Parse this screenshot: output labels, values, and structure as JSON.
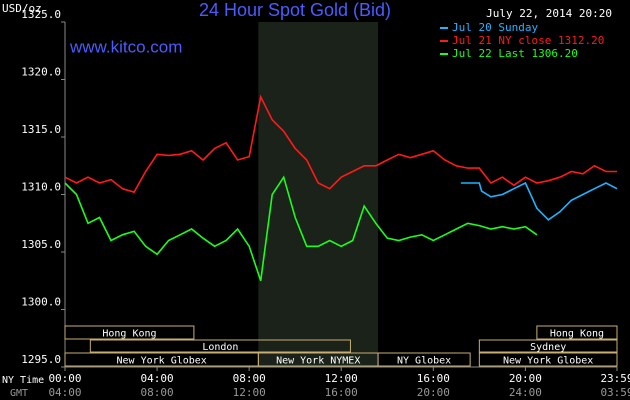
{
  "chart_data": {
    "type": "line",
    "title": "24 Hour Spot Gold (Bid)",
    "timestamp": "July 22, 2014 20:20",
    "site": "www.kitco.com",
    "y_label": "USD/oz",
    "x_label": "NY Time",
    "x2_label": "GMT",
    "xlim": [
      0,
      23.98
    ],
    "ylim": [
      1295,
      1325
    ],
    "yticks": [
      {
        "value": 1295,
        "label": "1295.0"
      },
      {
        "value": 1300,
        "label": "1300.0"
      },
      {
        "value": 1305,
        "label": "1305.0"
      },
      {
        "value": 1310,
        "label": "1310.0"
      },
      {
        "value": 1315,
        "label": "1315.0"
      },
      {
        "value": 1320,
        "label": "1320.0"
      },
      {
        "value": 1325,
        "label": "1325.0"
      }
    ],
    "xticks": [
      {
        "value": 0,
        "label": "00:00"
      },
      {
        "value": 4,
        "label": "04:00"
      },
      {
        "value": 8,
        "label": "08:00"
      },
      {
        "value": 12,
        "label": "12:00"
      },
      {
        "value": 16,
        "label": "16:00"
      },
      {
        "value": 20,
        "label": "20:00"
      },
      {
        "value": 23.98,
        "label": "23:59"
      }
    ],
    "x2ticks": [
      {
        "value": 0,
        "label": "04:00"
      },
      {
        "value": 4,
        "label": "08:00"
      },
      {
        "value": 8,
        "label": "12:00"
      },
      {
        "value": 12,
        "label": "16:00"
      },
      {
        "value": 16,
        "label": "20:00"
      },
      {
        "value": 20,
        "label": "24:00"
      },
      {
        "value": 23.98,
        "label": "03:59"
      }
    ],
    "shaded_range": [
      8.4,
      13.6
    ],
    "sessions": [
      {
        "label": "Hong Kong",
        "start": 0,
        "end": 5.6,
        "row": 0
      },
      {
        "label": "Hong Kong",
        "start": 20.5,
        "end": 23.98,
        "row": 0
      },
      {
        "label": "London",
        "start": 1.1,
        "end": 12.4,
        "row": 1
      },
      {
        "label": "Sydney",
        "start": 18,
        "end": 23.98,
        "row": 1
      },
      {
        "label": "New York Globex",
        "start": 0,
        "end": 8.4,
        "row": 2
      },
      {
        "label": "New York NYMEX",
        "start": 8.4,
        "end": 13.6,
        "row": 2
      },
      {
        "label": "NY Globex",
        "start": 13.6,
        "end": 17.6,
        "row": 2
      },
      {
        "label": "New York Globex",
        "start": 18,
        "end": 23.98,
        "row": 2
      }
    ],
    "series": [
      {
        "name": "Jul 20 Sunday",
        "color": "#1eb4ff",
        "x": [
          17.2,
          18,
          18.1,
          18.5,
          19,
          19.5,
          20,
          20.5,
          21,
          21.5,
          22,
          22.5,
          23,
          23.5,
          23.98
        ],
        "values": [
          1311,
          1311,
          1310.3,
          1309.8,
          1310,
          1310.5,
          1311,
          1308.8,
          1307.8,
          1308.5,
          1309.5,
          1310,
          1310.5,
          1311,
          1310.5
        ]
      },
      {
        "name": "Jul 21 NY close 1312.20",
        "color": "#ff1a1a",
        "x": [
          0,
          0.5,
          1,
          1.5,
          2,
          2.5,
          3,
          3.5,
          4,
          4.5,
          5,
          5.5,
          6,
          6.5,
          7,
          7.5,
          8,
          8.5,
          9,
          9.5,
          10,
          10.5,
          11,
          11.5,
          12,
          12.5,
          13,
          13.5,
          14,
          14.5,
          15,
          15.5,
          16,
          16.5,
          17,
          17.5,
          18,
          18.5,
          19,
          19.5,
          20,
          20.5,
          21,
          21.5,
          22,
          22.5,
          23,
          23.5,
          23.98
        ],
        "values": [
          1311.5,
          1311,
          1311.5,
          1311,
          1311.3,
          1310.5,
          1310.2,
          1312,
          1313.5,
          1313.4,
          1313.5,
          1313.8,
          1313,
          1314,
          1314.5,
          1313,
          1313.3,
          1318.5,
          1316.5,
          1315.5,
          1314,
          1313,
          1311,
          1310.5,
          1311.5,
          1312,
          1312.5,
          1312.5,
          1313,
          1313.5,
          1313.2,
          1313.5,
          1313.8,
          1313,
          1312.5,
          1312.3,
          1312.3,
          1311,
          1311.5,
          1310.8,
          1311.5,
          1311,
          1311.2,
          1311.5,
          1312,
          1311.8,
          1312.5,
          1312,
          1312
        ]
      },
      {
        "name": "Jul 22 Last 1306.20",
        "color": "#1aff1a",
        "x": [
          0,
          0.5,
          1,
          1.5,
          2,
          2.5,
          3,
          3.5,
          4,
          4.5,
          5,
          5.5,
          6,
          6.5,
          7,
          7.5,
          8,
          8.5,
          9,
          9.5,
          10,
          10.5,
          11,
          11.5,
          12,
          12.5,
          13,
          13.5,
          14,
          14.5,
          15,
          15.5,
          16,
          16.5,
          17,
          17.5,
          18,
          18.5,
          19,
          19.5,
          20,
          20.5
        ],
        "values": [
          1311,
          1310,
          1307.5,
          1308,
          1306,
          1306.5,
          1306.8,
          1305.5,
          1304.8,
          1306,
          1306.5,
          1307,
          1306.2,
          1305.5,
          1306,
          1307,
          1305.5,
          1302.5,
          1310,
          1311.5,
          1308,
          1305.5,
          1305.5,
          1306,
          1305.5,
          1306,
          1309,
          1307.5,
          1306.2,
          1306,
          1306.3,
          1306.5,
          1306,
          1306.5,
          1307,
          1307.5,
          1307.3,
          1307,
          1307.2,
          1307,
          1307.2,
          1306.5
        ]
      }
    ]
  }
}
